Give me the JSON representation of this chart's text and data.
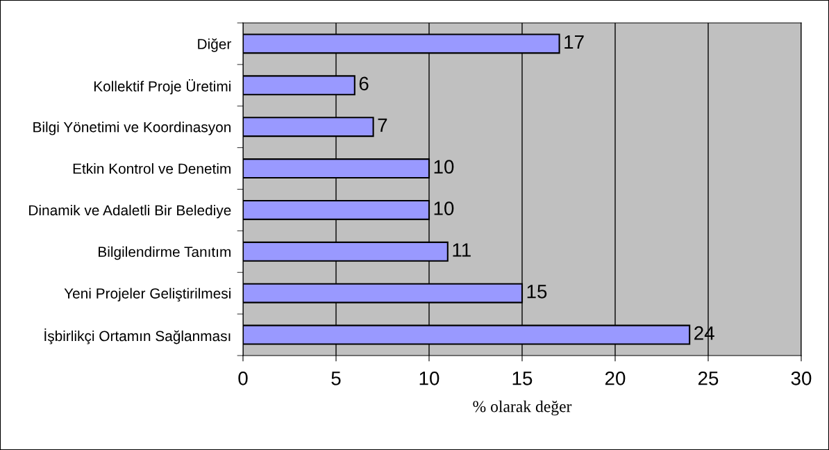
{
  "chart_data": {
    "type": "bar",
    "orientation": "horizontal",
    "xlabel": "% olarak değer",
    "categories": [
      "Diğer",
      "Kollektif Proje Üretimi",
      "Bilgi Yönetimi ve Koordinasyon",
      "Etkin Kontrol ve Denetim",
      "Dinamik ve Adaletli Bir Belediye",
      "Bilgilendirme Tanıtım",
      "Yeni Projeler Geliştirilmesi",
      "İşbirlikçi Ortamın Sağlanması"
    ],
    "values": [
      17,
      6,
      7,
      10,
      10,
      11,
      15,
      24
    ],
    "color": "#9999ff",
    "xlim": [
      0,
      30
    ],
    "xticks": [
      0,
      5,
      10,
      15,
      20,
      25,
      30
    ],
    "grid": "x",
    "data_labels": true
  }
}
